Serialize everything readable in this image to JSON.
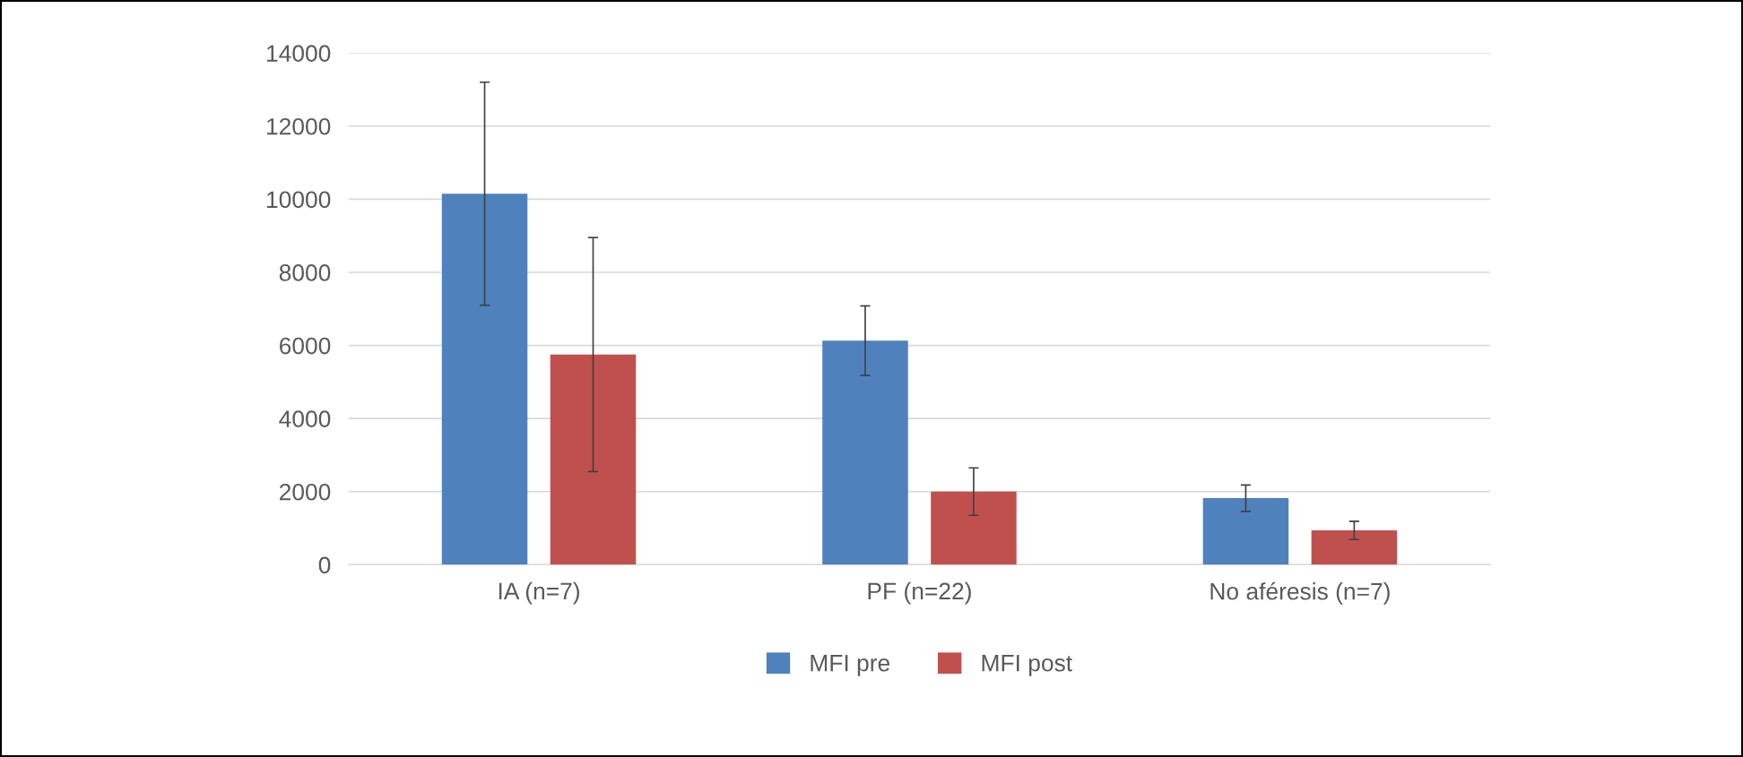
{
  "chart_data": {
    "type": "bar",
    "categories": [
      "IA (n=7)",
      "PF (n=22)",
      "No aféresis (n=7)"
    ],
    "series": [
      {
        "name": "MFI pre",
        "color": "#4f81bd",
        "values": [
          10150,
          6130,
          1820
        ],
        "errors": [
          3050,
          950,
          360
        ]
      },
      {
        "name": "MFI post",
        "color": "#c0504d",
        "values": [
          5750,
          2000,
          940
        ],
        "errors": [
          3200,
          650,
          250
        ]
      }
    ],
    "ylim": [
      0,
      14000
    ],
    "yticks": [
      0,
      2000,
      4000,
      6000,
      8000,
      10000,
      12000,
      14000
    ],
    "grid": "y",
    "legend": "bottom"
  }
}
